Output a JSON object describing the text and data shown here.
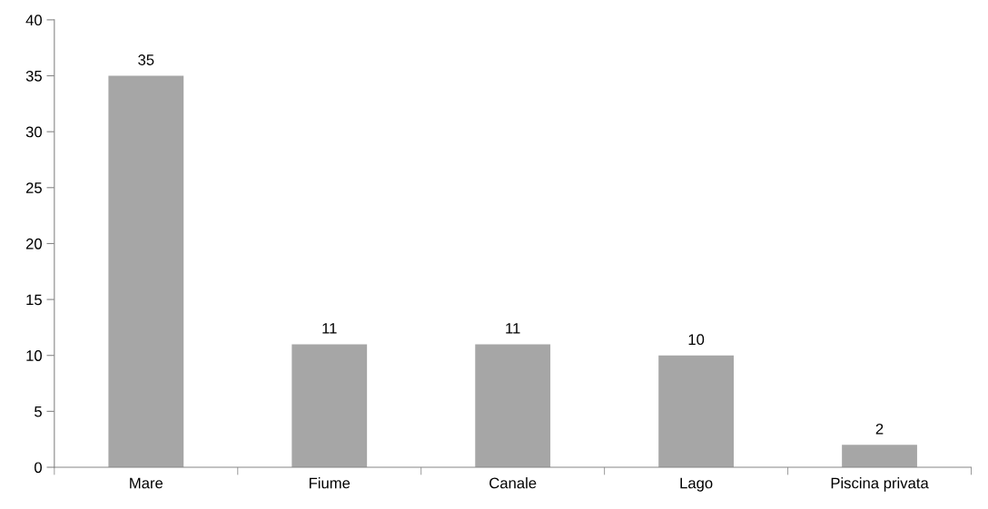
{
  "chart_data": {
    "type": "bar",
    "categories": [
      "Mare",
      "Fiume",
      "Canale",
      "Lago",
      "Piscina privata"
    ],
    "values": [
      35,
      11,
      11,
      10,
      2
    ],
    "color": "#a6a6a6",
    "ylim": [
      0,
      40
    ],
    "yticks": [
      0,
      5,
      10,
      15,
      20,
      25,
      30,
      35,
      40
    ],
    "grid": false,
    "data_labels": true
  }
}
